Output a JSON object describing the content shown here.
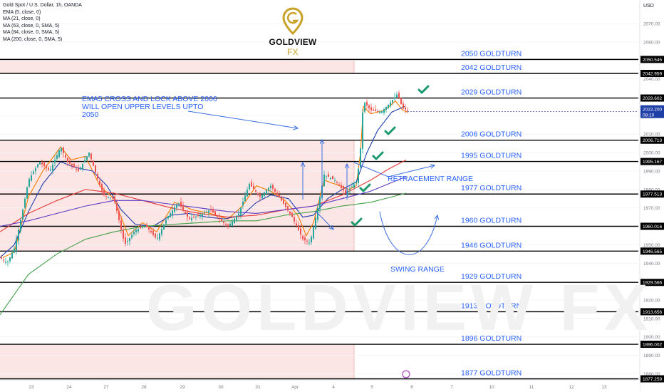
{
  "legend": {
    "title": "Gold Spot / U.S. Dollar, 1h, OANDA",
    "lines": [
      "EMA (5, close, 0)",
      "MA (21, close, 0)",
      "MA (63, close, 0, SMA, 5)",
      "MA (84, close, 0, SMA, 5)",
      "MA (200, close, 0, SMA, 5)"
    ]
  },
  "logo": {
    "name": "GOLDVIEW",
    "suffix": "FX"
  },
  "watermark": "GOLDVIEW FX",
  "axis": {
    "currency": "USD"
  },
  "colors": {
    "gold": "#c9a227",
    "level_text": "#2962ff",
    "zone": "#fbe0e0",
    "candle_up": "#26a69a",
    "candle_down": "#ef5350",
    "check": "#1a9a6c",
    "ema5": "#f57c00",
    "ma21": "#1e40af",
    "ma63": "#e53935",
    "ma84": "#5b3cc4",
    "ma200": "#43a047"
  },
  "chart_data": {
    "type": "line",
    "title": "Gold Spot / U.S. Dollar, 1h, OANDA",
    "ylim": [
      1874,
      2074
    ],
    "y_ticks": [
      1880,
      1890,
      1900,
      1910,
      1920,
      1930,
      1940,
      1950,
      1960,
      1970,
      1980,
      1990,
      2000,
      2010,
      2020,
      2030,
      2040,
      2050,
      2060,
      2070
    ],
    "x_ticks": [
      "23",
      "24",
      "27",
      "28",
      "29",
      "30",
      "31",
      "Apr",
      "4",
      "5",
      "6",
      "7",
      "10",
      "11",
      "12",
      "13"
    ],
    "horizontal_levels": [
      {
        "label": "2050 GOLDTURN",
        "value": 2050.545
      },
      {
        "label": "2042 GOLDTURN",
        "value": 2042.959
      },
      {
        "label": "2029 GOLDTURN",
        "value": 2029.602
      },
      {
        "label": "2006 GOLDTURN",
        "value": 2006.713
      },
      {
        "label": "1995 GOLDTURN",
        "value": 1995.167
      },
      {
        "label": "1977 GOLDTURN",
        "value": 1977.513
      },
      {
        "label": "1960 GOLDTURN",
        "value": 1960.016
      },
      {
        "label": "1946 GOLDTURN",
        "value": 1946.565
      },
      {
        "label": "1929 GOLDTURN",
        "value": 1929.566
      },
      {
        "label": "1913 GOLDTURN",
        "value": 1913.656
      },
      {
        "label": "1896 GOLDTURN",
        "value": 1896.002
      },
      {
        "label": "1877 GOLDTURN",
        "value": 1877.259
      }
    ],
    "zones": [
      {
        "from": 2042.959,
        "to": 2050.545
      },
      {
        "from": 1946.565,
        "to": 2006.713
      },
      {
        "from": 1877.259,
        "to": 1896.002
      }
    ],
    "last_price": {
      "value": 2022.2,
      "label": "2022.200",
      "countdown": "08:10"
    },
    "series": [
      {
        "name": "EMA (5, close, 0)",
        "color": "#f57c00",
        "points": [
          [
            4,
            1943
          ],
          [
            20,
            1946
          ],
          [
            40,
            1976
          ],
          [
            60,
            1990
          ],
          [
            85,
            2003
          ],
          [
            100,
            1996
          ],
          [
            120,
            1998
          ],
          [
            140,
            1982
          ],
          [
            160,
            1975
          ],
          [
            180,
            1955
          ],
          [
            200,
            1962
          ],
          [
            220,
            1957
          ],
          [
            245,
            1973
          ],
          [
            270,
            1969
          ],
          [
            295,
            1967
          ],
          [
            320,
            1964
          ],
          [
            340,
            1971
          ],
          [
            360,
            1982
          ],
          [
            380,
            1979
          ],
          [
            400,
            1974
          ],
          [
            418,
            1966
          ],
          [
            430,
            1955
          ],
          [
            440,
            1962
          ],
          [
            455,
            1985
          ],
          [
            470,
            1983
          ],
          [
            490,
            1980
          ],
          [
            500,
            1982
          ],
          [
            506,
            2000
          ],
          [
            510,
            2025
          ],
          [
            520,
            2021
          ],
          [
            540,
            2023
          ],
          [
            555,
            2028
          ],
          [
            565,
            2023
          ],
          [
            572,
            2022
          ]
        ]
      },
      {
        "name": "MA (21, close, 0)",
        "color": "#1e40af",
        "points": [
          [
            0,
            1943
          ],
          [
            20,
            1950
          ],
          [
            40,
            1968
          ],
          [
            60,
            1983
          ],
          [
            85,
            1995
          ],
          [
            105,
            1992
          ],
          [
            130,
            1990
          ],
          [
            150,
            1982
          ],
          [
            170,
            1969
          ],
          [
            190,
            1961
          ],
          [
            215,
            1960
          ],
          [
            240,
            1966
          ],
          [
            265,
            1967
          ],
          [
            290,
            1965
          ],
          [
            315,
            1964
          ],
          [
            340,
            1966
          ],
          [
            360,
            1973
          ],
          [
            380,
            1977
          ],
          [
            405,
            1975
          ],
          [
            425,
            1965
          ],
          [
            440,
            1966
          ],
          [
            460,
            1975
          ],
          [
            480,
            1980
          ],
          [
            500,
            1984
          ],
          [
            515,
            2000
          ],
          [
            530,
            2012
          ],
          [
            550,
            2022
          ],
          [
            568,
            2025
          ]
        ]
      },
      {
        "name": "MA (63, close, 0, SMA, 5)",
        "color": "#e53935",
        "points": [
          [
            0,
            1957
          ],
          [
            40,
            1967
          ],
          [
            80,
            1974
          ],
          [
            120,
            1980
          ],
          [
            160,
            1978
          ],
          [
            200,
            1974
          ],
          [
            240,
            1970
          ],
          [
            280,
            1967
          ],
          [
            320,
            1965
          ],
          [
            360,
            1966
          ],
          [
            400,
            1969
          ],
          [
            440,
            1971
          ],
          [
            480,
            1977
          ],
          [
            520,
            1985
          ],
          [
            545,
            1991
          ],
          [
            570,
            1996
          ]
        ]
      },
      {
        "name": "MA (84, close, 0, SMA, 5)",
        "color": "#5b3cc4",
        "points": [
          [
            0,
            1960
          ],
          [
            40,
            1963
          ],
          [
            80,
            1967
          ],
          [
            120,
            1971
          ],
          [
            160,
            1974
          ],
          [
            200,
            1974
          ],
          [
            240,
            1972
          ],
          [
            280,
            1970
          ],
          [
            320,
            1968
          ],
          [
            360,
            1967
          ],
          [
            400,
            1969
          ],
          [
            440,
            1971
          ],
          [
            480,
            1975
          ],
          [
            520,
            1979
          ],
          [
            570,
            1987
          ]
        ]
      },
      {
        "name": "MA (200, close, 0, SMA, 5)",
        "color": "#43a047",
        "points": [
          [
            0,
            1912
          ],
          [
            40,
            1934
          ],
          [
            80,
            1945
          ],
          [
            120,
            1953
          ],
          [
            160,
            1957
          ],
          [
            200,
            1960
          ],
          [
            240,
            1961
          ],
          [
            280,
            1962
          ],
          [
            320,
            1963
          ],
          [
            360,
            1963
          ],
          [
            400,
            1966
          ],
          [
            440,
            1968
          ],
          [
            480,
            1971
          ],
          [
            520,
            1973
          ],
          [
            570,
            1978
          ]
        ]
      }
    ],
    "price_path": [
      [
        0,
        1943
      ],
      [
        10,
        1940
      ],
      [
        20,
        1948
      ],
      [
        30,
        1965
      ],
      [
        40,
        1985
      ],
      [
        55,
        1995
      ],
      [
        70,
        1990
      ],
      [
        85,
        2003
      ],
      [
        95,
        1995
      ],
      [
        110,
        1990
      ],
      [
        125,
        2000
      ],
      [
        135,
        1988
      ],
      [
        145,
        1977
      ],
      [
        160,
        1975
      ],
      [
        175,
        1950
      ],
      [
        190,
        1958
      ],
      [
        205,
        1960
      ],
      [
        220,
        1953
      ],
      [
        235,
        1965
      ],
      [
        250,
        1973
      ],
      [
        265,
        1964
      ],
      [
        280,
        1966
      ],
      [
        295,
        1969
      ],
      [
        310,
        1963
      ],
      [
        320,
        1960
      ],
      [
        335,
        1967
      ],
      [
        350,
        1983
      ],
      [
        365,
        1976
      ],
      [
        380,
        1982
      ],
      [
        395,
        1974
      ],
      [
        410,
        1965
      ],
      [
        425,
        1953
      ],
      [
        435,
        1951
      ],
      [
        445,
        1968
      ],
      [
        455,
        1988
      ],
      [
        470,
        1985
      ],
      [
        485,
        1978
      ],
      [
        500,
        1984
      ],
      [
        505,
        1996
      ],
      [
        510,
        2028
      ],
      [
        520,
        2023
      ],
      [
        535,
        2022
      ],
      [
        550,
        2028
      ],
      [
        558,
        2032
      ],
      [
        565,
        2024
      ],
      [
        572,
        2023
      ]
    ]
  },
  "annotations": {
    "ema_note": [
      "EMA5 CROSS AND LOCK ABOVE 2006",
      "WILL OPEN UPPER LEVELS UPTO",
      "2050"
    ],
    "retracement": "RETRACEMENT RANGE",
    "swing": "SWING RANGE"
  }
}
